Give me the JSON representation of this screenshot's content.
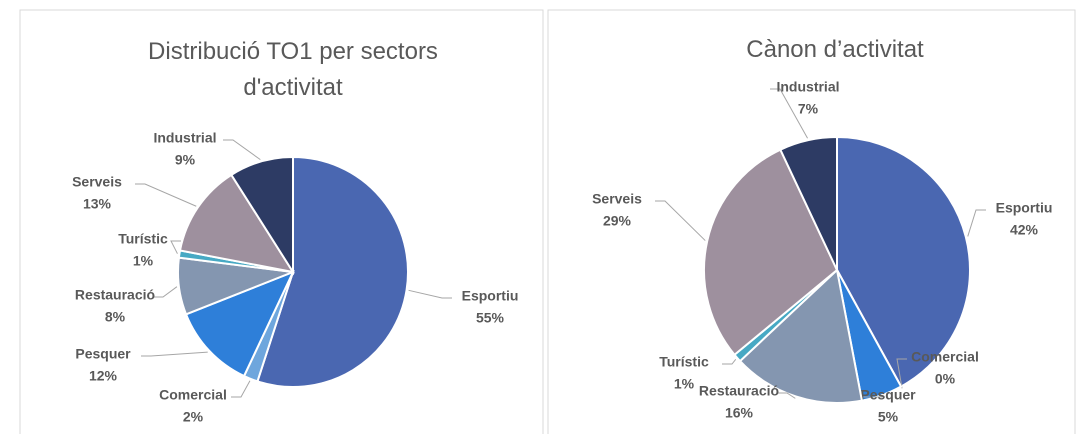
{
  "chart_data": [
    {
      "type": "pie",
      "title": "Distribució TO1 per sectors d'activitat",
      "categories": [
        "Esportiu",
        "Comercial",
        "Pesquer",
        "Restauració",
        "Turístic",
        "Serveis",
        "Industrial"
      ],
      "values": [
        55,
        2,
        12,
        8,
        1,
        13,
        9
      ],
      "value_labels": [
        "55%",
        "2%",
        "12%",
        "8%",
        "1%",
        "13%",
        "9%"
      ],
      "colors": [
        "#4a67b1",
        "#6ea6dd",
        "#2e7fd9",
        "#8496b0",
        "#47a9c4",
        "#9e909e",
        "#2d3b64"
      ]
    },
    {
      "type": "pie",
      "title": "Cànon d’activitat",
      "categories": [
        "Esportiu",
        "Comercial",
        "Pesquer",
        "Restauració",
        "Turístic",
        "Serveis",
        "Industrial"
      ],
      "values": [
        42,
        0,
        5,
        16,
        1,
        29,
        7
      ],
      "value_labels": [
        "42%",
        "0%",
        "5%",
        "16%",
        "1%",
        "29%",
        "7%"
      ],
      "colors": [
        "#4a67b1",
        "#6ea6dd",
        "#2e7fd9",
        "#8496b0",
        "#47a9c4",
        "#9e909e",
        "#2d3b64"
      ]
    }
  ]
}
